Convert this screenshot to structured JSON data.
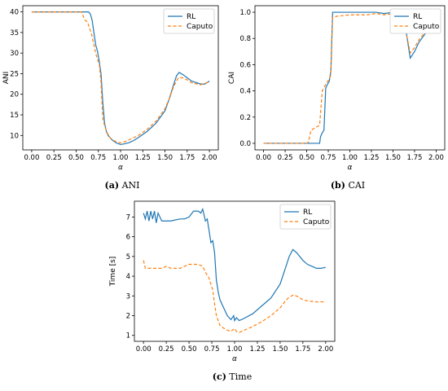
{
  "chart_data": [
    {
      "id": "ani",
      "type": "line",
      "ylabel": "ANI",
      "xlabel": "α",
      "caption_letter": "(a)",
      "caption_text": "ANI",
      "xlim": [
        -0.1,
        2.1
      ],
      "ylim": [
        6.5,
        41.5
      ],
      "xticks": [
        "0.00",
        "0.25",
        "0.50",
        "0.75",
        "1.00",
        "1.25",
        "1.50",
        "1.75",
        "2.00"
      ],
      "xtick_values": [
        0,
        0.25,
        0.5,
        0.75,
        1.0,
        1.25,
        1.5,
        1.75,
        2.0
      ],
      "yticks": [
        "10",
        "15",
        "20",
        "25",
        "30",
        "35",
        "40"
      ],
      "ytick_values": [
        10,
        15,
        20,
        25,
        30,
        35,
        40
      ],
      "legend": "top-right",
      "series": [
        {
          "name": "RL",
          "color": "#1f77b4",
          "dash": "",
          "points": [
            [
              0,
              40
            ],
            [
              0.1,
              40
            ],
            [
              0.2,
              40
            ],
            [
              0.3,
              40
            ],
            [
              0.4,
              40
            ],
            [
              0.5,
              40
            ],
            [
              0.6,
              40
            ],
            [
              0.64,
              40
            ],
            [
              0.66,
              39.5
            ],
            [
              0.68,
              38
            ],
            [
              0.7,
              35
            ],
            [
              0.72,
              32
            ],
            [
              0.74,
              30.5
            ],
            [
              0.76,
              28
            ],
            [
              0.78,
              25
            ],
            [
              0.8,
              18
            ],
            [
              0.82,
              13
            ],
            [
              0.84,
              11
            ],
            [
              0.86,
              10
            ],
            [
              0.9,
              9
            ],
            [
              0.95,
              8.2
            ],
            [
              1.0,
              7.8
            ],
            [
              1.05,
              8.0
            ],
            [
              1.1,
              8.3
            ],
            [
              1.15,
              8.8
            ],
            [
              1.2,
              9.5
            ],
            [
              1.3,
              11
            ],
            [
              1.4,
              13
            ],
            [
              1.5,
              16
            ],
            [
              1.55,
              19
            ],
            [
              1.6,
              22.5
            ],
            [
              1.63,
              24.5
            ],
            [
              1.66,
              25.3
            ],
            [
              1.7,
              24.8
            ],
            [
              1.75,
              24
            ],
            [
              1.8,
              23.2
            ],
            [
              1.9,
              22.5
            ],
            [
              1.95,
              22.5
            ],
            [
              2.0,
              23.2
            ]
          ]
        },
        {
          "name": "Caputo",
          "color": "#ff7f0e",
          "dash": "4,2.5",
          "points": [
            [
              0,
              40
            ],
            [
              0.1,
              40
            ],
            [
              0.2,
              40
            ],
            [
              0.3,
              40
            ],
            [
              0.4,
              40
            ],
            [
              0.5,
              40
            ],
            [
              0.56,
              40
            ],
            [
              0.58,
              39
            ],
            [
              0.6,
              38
            ],
            [
              0.63,
              37.5
            ],
            [
              0.65,
              36
            ],
            [
              0.67,
              35
            ],
            [
              0.7,
              32
            ],
            [
              0.72,
              30
            ],
            [
              0.74,
              28.5
            ],
            [
              0.76,
              27.5
            ],
            [
              0.78,
              23
            ],
            [
              0.8,
              14
            ],
            [
              0.84,
              11
            ],
            [
              0.88,
              9.5
            ],
            [
              0.92,
              8.8
            ],
            [
              0.96,
              8.4
            ],
            [
              1.0,
              8.2
            ],
            [
              1.05,
              8.5
            ],
            [
              1.1,
              9.0
            ],
            [
              1.2,
              10
            ],
            [
              1.3,
              11.5
            ],
            [
              1.4,
              13.5
            ],
            [
              1.5,
              16.5
            ],
            [
              1.55,
              19
            ],
            [
              1.6,
              22
            ],
            [
              1.65,
              24
            ],
            [
              1.7,
              24
            ],
            [
              1.75,
              23.5
            ],
            [
              1.8,
              22.8
            ],
            [
              1.9,
              22.3
            ],
            [
              2.0,
              23
            ]
          ]
        }
      ]
    },
    {
      "id": "cai",
      "type": "line",
      "ylabel": "CAI",
      "xlabel": "α",
      "caption_letter": "(b)",
      "caption_text": "CAI",
      "xlim": [
        -0.1,
        2.1
      ],
      "ylim": [
        -0.05,
        1.05
      ],
      "xticks": [
        "0.00",
        "0.25",
        "0.50",
        "0.75",
        "1.00",
        "1.25",
        "1.50",
        "1.75",
        "2.00"
      ],
      "xtick_values": [
        0,
        0.25,
        0.5,
        0.75,
        1.0,
        1.25,
        1.5,
        1.75,
        2.0
      ],
      "yticks": [
        "0.0",
        "0.2",
        "0.4",
        "0.6",
        "0.8",
        "1.0"
      ],
      "ytick_values": [
        0,
        0.2,
        0.4,
        0.6,
        0.8,
        1.0
      ],
      "legend": "top-right",
      "series": [
        {
          "name": "RL",
          "color": "#1f77b4",
          "dash": "",
          "points": [
            [
              0,
              0
            ],
            [
              0.2,
              0
            ],
            [
              0.4,
              0
            ],
            [
              0.6,
              0
            ],
            [
              0.65,
              0
            ],
            [
              0.66,
              0.05
            ],
            [
              0.68,
              0.08
            ],
            [
              0.7,
              0.1
            ],
            [
              0.72,
              0.42
            ],
            [
              0.74,
              0.45
            ],
            [
              0.76,
              0.47
            ],
            [
              0.78,
              0.55
            ],
            [
              0.8,
              1.0
            ],
            [
              0.85,
              1.0
            ],
            [
              1.0,
              1.0
            ],
            [
              1.2,
              1.0
            ],
            [
              1.3,
              1.0
            ],
            [
              1.4,
              0.99
            ],
            [
              1.5,
              1.0
            ],
            [
              1.6,
              1.0
            ],
            [
              1.63,
              0.98
            ],
            [
              1.66,
              0.82
            ],
            [
              1.7,
              0.65
            ],
            [
              1.75,
              0.7
            ],
            [
              1.8,
              0.77
            ],
            [
              1.9,
              0.86
            ],
            [
              1.95,
              0.92
            ],
            [
              2.0,
              0.93
            ]
          ]
        },
        {
          "name": "Caputo",
          "color": "#ff7f0e",
          "dash": "4,2.5",
          "points": [
            [
              0,
              0
            ],
            [
              0.2,
              0
            ],
            [
              0.4,
              0
            ],
            [
              0.5,
              0
            ],
            [
              0.52,
              0.01
            ],
            [
              0.55,
              0.1
            ],
            [
              0.6,
              0.12
            ],
            [
              0.63,
              0.13
            ],
            [
              0.65,
              0.14
            ],
            [
              0.68,
              0.4
            ],
            [
              0.72,
              0.45
            ],
            [
              0.75,
              0.48
            ],
            [
              0.78,
              0.52
            ],
            [
              0.8,
              0.96
            ],
            [
              0.85,
              0.97
            ],
            [
              1.0,
              0.98
            ],
            [
              1.2,
              0.98
            ],
            [
              1.3,
              0.99
            ],
            [
              1.4,
              0.98
            ],
            [
              1.5,
              0.99
            ],
            [
              1.6,
              0.99
            ],
            [
              1.63,
              0.96
            ],
            [
              1.66,
              0.82
            ],
            [
              1.7,
              0.69
            ],
            [
              1.75,
              0.73
            ],
            [
              1.8,
              0.79
            ],
            [
              1.9,
              0.87
            ],
            [
              1.95,
              0.91
            ],
            [
              2.0,
              0.93
            ]
          ]
        }
      ]
    },
    {
      "id": "time",
      "type": "line",
      "ylabel": "Time [s]",
      "xlabel": "α",
      "caption_letter": "(c)",
      "caption_text": "Time",
      "xlim": [
        -0.1,
        2.1
      ],
      "ylim": [
        0.7,
        7.8
      ],
      "xticks": [
        "0.00",
        "0.25",
        "0.50",
        "0.75",
        "1.00",
        "1.25",
        "1.50",
        "1.75",
        "2.00"
      ],
      "xtick_values": [
        0,
        0.25,
        0.5,
        0.75,
        1.0,
        1.25,
        1.5,
        1.75,
        2.0
      ],
      "yticks": [
        "1",
        "2",
        "3",
        "4",
        "5",
        "6",
        "7"
      ],
      "ytick_values": [
        1,
        2,
        3,
        4,
        5,
        6,
        7
      ],
      "legend": "top-right",
      "series": [
        {
          "name": "RL",
          "color": "#1f77b4",
          "dash": "",
          "points": [
            [
              0,
              7.2
            ],
            [
              0.02,
              6.9
            ],
            [
              0.04,
              7.3
            ],
            [
              0.06,
              6.8
            ],
            [
              0.08,
              7.3
            ],
            [
              0.1,
              6.9
            ],
            [
              0.12,
              7.3
            ],
            [
              0.14,
              6.7
            ],
            [
              0.16,
              7.2
            ],
            [
              0.2,
              6.8
            ],
            [
              0.3,
              6.8
            ],
            [
              0.4,
              6.9
            ],
            [
              0.45,
              6.9
            ],
            [
              0.5,
              7.0
            ],
            [
              0.55,
              7.3
            ],
            [
              0.6,
              7.3
            ],
            [
              0.63,
              7.2
            ],
            [
              0.65,
              7.4
            ],
            [
              0.68,
              6.8
            ],
            [
              0.7,
              6.9
            ],
            [
              0.72,
              6.3
            ],
            [
              0.74,
              5.7
            ],
            [
              0.76,
              5.8
            ],
            [
              0.78,
              5.2
            ],
            [
              0.8,
              3.8
            ],
            [
              0.82,
              3.2
            ],
            [
              0.84,
              2.8
            ],
            [
              0.88,
              2.4
            ],
            [
              0.92,
              2.0
            ],
            [
              0.96,
              1.8
            ],
            [
              0.99,
              2.0
            ],
            [
              1.0,
              1.75
            ],
            [
              1.02,
              1.9
            ],
            [
              1.05,
              1.75
            ],
            [
              1.1,
              1.85
            ],
            [
              1.2,
              2.1
            ],
            [
              1.3,
              2.5
            ],
            [
              1.4,
              2.9
            ],
            [
              1.5,
              3.6
            ],
            [
              1.55,
              4.3
            ],
            [
              1.6,
              5.0
            ],
            [
              1.64,
              5.35
            ],
            [
              1.68,
              5.2
            ],
            [
              1.75,
              4.8
            ],
            [
              1.8,
              4.6
            ],
            [
              1.9,
              4.4
            ],
            [
              1.95,
              4.4
            ],
            [
              2.0,
              4.45
            ]
          ]
        },
        {
          "name": "Caputo",
          "color": "#ff7f0e",
          "dash": "4,2.5",
          "points": [
            [
              0,
              4.8
            ],
            [
              0.02,
              4.4
            ],
            [
              0.1,
              4.4
            ],
            [
              0.2,
              4.4
            ],
            [
              0.25,
              4.5
            ],
            [
              0.3,
              4.4
            ],
            [
              0.4,
              4.4
            ],
            [
              0.5,
              4.6
            ],
            [
              0.6,
              4.6
            ],
            [
              0.65,
              4.5
            ],
            [
              0.68,
              4.2
            ],
            [
              0.72,
              3.9
            ],
            [
              0.76,
              3.3
            ],
            [
              0.78,
              2.6
            ],
            [
              0.8,
              2.0
            ],
            [
              0.84,
              1.5
            ],
            [
              0.9,
              1.3
            ],
            [
              0.96,
              1.2
            ],
            [
              1.0,
              1.35
            ],
            [
              1.02,
              1.2
            ],
            [
              1.05,
              1.15
            ],
            [
              1.1,
              1.25
            ],
            [
              1.2,
              1.45
            ],
            [
              1.3,
              1.7
            ],
            [
              1.4,
              2.0
            ],
            [
              1.5,
              2.4
            ],
            [
              1.55,
              2.7
            ],
            [
              1.6,
              2.95
            ],
            [
              1.65,
              3.05
            ],
            [
              1.7,
              2.95
            ],
            [
              1.75,
              2.8
            ],
            [
              1.8,
              2.75
            ],
            [
              1.9,
              2.7
            ],
            [
              2.0,
              2.7
            ]
          ]
        }
      ]
    }
  ]
}
